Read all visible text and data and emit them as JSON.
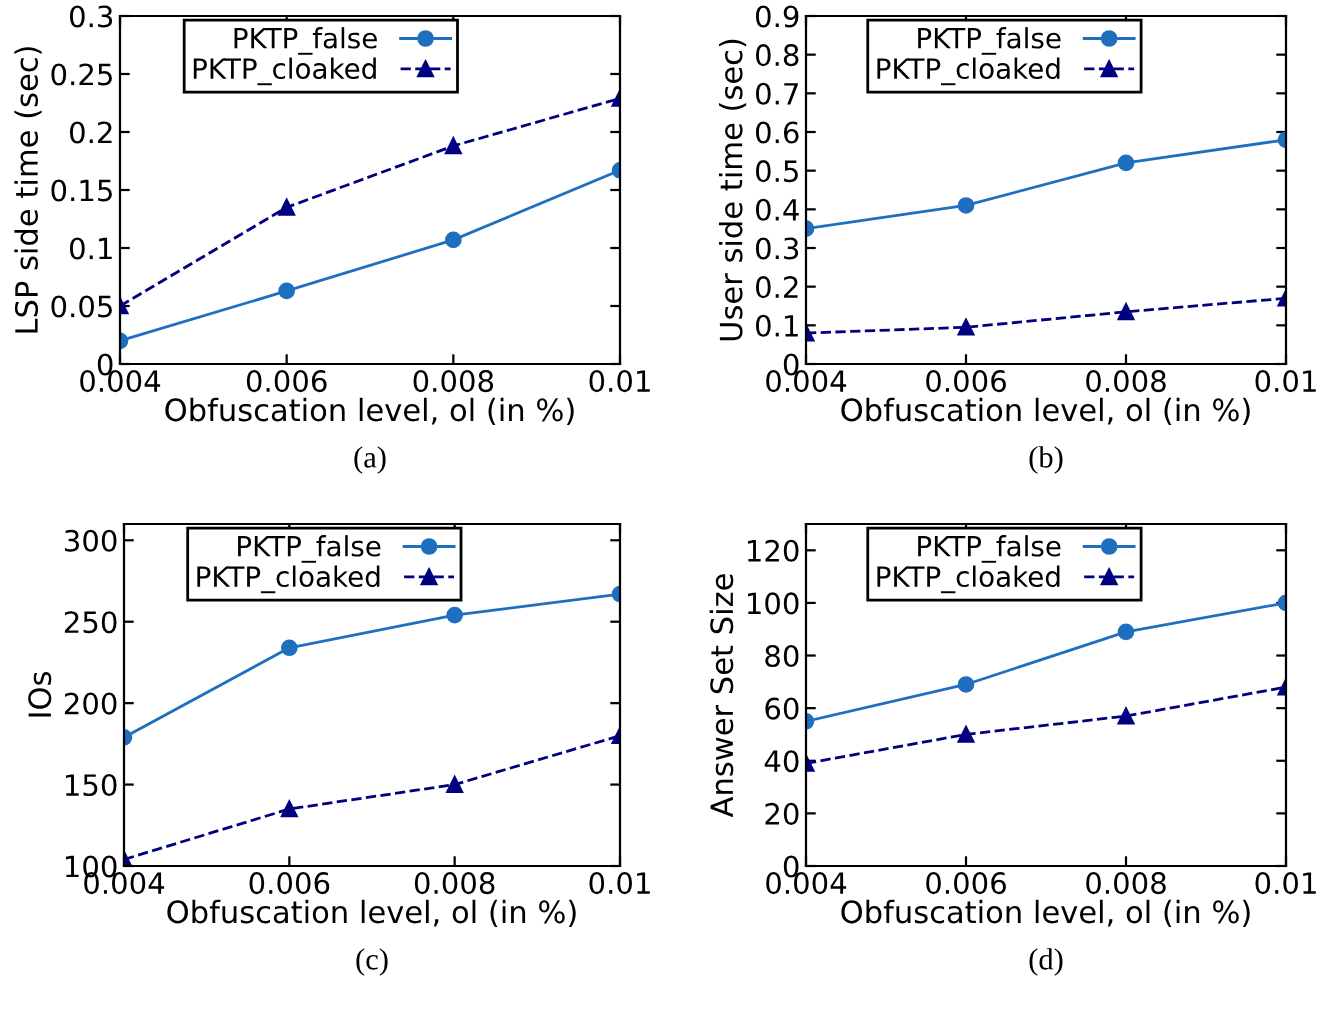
{
  "chart_data": [
    {
      "type": "line",
      "xlabel": "Obfuscation level, ol (in %)",
      "ylabel": "LSP side time (sec)",
      "annotations": [
        "(a)"
      ],
      "x": [
        0.004,
        0.006,
        0.008,
        0.01
      ],
      "xlim": [
        0.004,
        0.01
      ],
      "xticks": [
        0.004,
        0.006,
        0.008,
        0.01
      ],
      "ylim": [
        0,
        0.3
      ],
      "yticks": [
        0,
        0.05,
        0.1,
        0.15,
        0.2,
        0.25,
        0.3
      ],
      "grid": false,
      "legend": "top left",
      "series": [
        {
          "name": "PKTP_false",
          "color": "#1f6fbf",
          "marker": "circle",
          "line_style": "solid",
          "values": [
            0.02,
            0.063,
            0.107,
            0.167
          ]
        },
        {
          "name": "PKTP_cloaked",
          "color": "#000080",
          "marker": "triangle",
          "line_style": "dashed",
          "values": [
            0.05,
            0.135,
            0.188,
            0.229
          ]
        }
      ]
    },
    {
      "type": "line",
      "xlabel": "Obfuscation level, ol (in %)",
      "ylabel": "User side time (sec)",
      "annotations": [
        "(b)"
      ],
      "x": [
        0.004,
        0.006,
        0.008,
        0.01
      ],
      "xlim": [
        0.004,
        0.01
      ],
      "xticks": [
        0.004,
        0.006,
        0.008,
        0.01
      ],
      "ylim": [
        0,
        0.9
      ],
      "yticks": [
        0,
        0.1,
        0.2,
        0.3,
        0.4,
        0.5,
        0.6,
        0.7,
        0.8,
        0.9
      ],
      "grid": false,
      "legend": "top left",
      "series": [
        {
          "name": "PKTP_false",
          "color": "#1f6fbf",
          "marker": "circle",
          "line_style": "solid",
          "values": [
            0.35,
            0.41,
            0.52,
            0.58
          ]
        },
        {
          "name": "PKTP_cloaked",
          "color": "#000080",
          "marker": "triangle",
          "line_style": "dashed",
          "values": [
            0.08,
            0.095,
            0.135,
            0.17
          ]
        }
      ]
    },
    {
      "type": "line",
      "xlabel": "Obfuscation level, ol (in %)",
      "ylabel": "IOs",
      "annotations": [
        "(c)"
      ],
      "x": [
        0.004,
        0.006,
        0.008,
        0.01
      ],
      "xlim": [
        0.004,
        0.01
      ],
      "xticks": [
        0.004,
        0.006,
        0.008,
        0.01
      ],
      "ylim": [
        100,
        310
      ],
      "yticks": [
        100,
        150,
        200,
        250,
        300
      ],
      "grid": false,
      "legend": "top left",
      "series": [
        {
          "name": "PKTP_false",
          "color": "#1f6fbf",
          "marker": "circle",
          "line_style": "solid",
          "values": [
            179,
            234,
            254,
            267
          ]
        },
        {
          "name": "PKTP_cloaked",
          "color": "#000080",
          "marker": "triangle",
          "line_style": "dashed",
          "values": [
            104,
            135,
            150,
            180
          ]
        }
      ]
    },
    {
      "type": "line",
      "xlabel": "Obfuscation level, ol (in %)",
      "ylabel": "Answer Set Size",
      "annotations": [
        "(d)"
      ],
      "x": [
        0.004,
        0.006,
        0.008,
        0.01
      ],
      "xlim": [
        0.004,
        0.01
      ],
      "xticks": [
        0.004,
        0.006,
        0.008,
        0.01
      ],
      "ylim": [
        0,
        130
      ],
      "yticks": [
        0,
        20,
        40,
        60,
        80,
        100,
        120
      ],
      "grid": false,
      "legend": "top left",
      "series": [
        {
          "name": "PKTP_false",
          "color": "#1f6fbf",
          "marker": "circle",
          "line_style": "solid",
          "values": [
            55,
            69,
            89,
            100
          ]
        },
        {
          "name": "PKTP_cloaked",
          "color": "#000080",
          "marker": "triangle",
          "line_style": "dashed",
          "values": [
            39,
            50,
            57,
            68
          ]
        }
      ]
    }
  ]
}
